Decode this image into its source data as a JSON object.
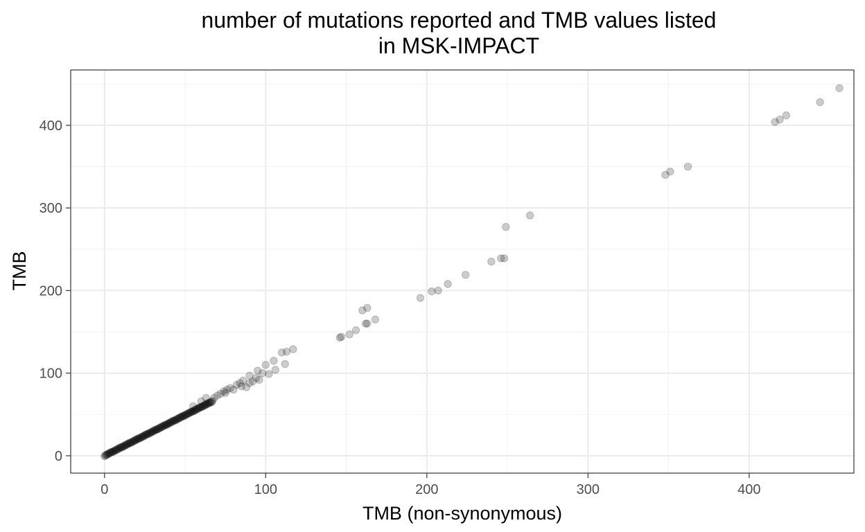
{
  "chart_data": {
    "type": "scatter",
    "title_lines": [
      "number of mutations reported and TMB values listed",
      "in MSK-IMPACT"
    ],
    "xlabel": "TMB (non-synonymous)",
    "ylabel": "TMB",
    "xlim": [
      -21,
      465
    ],
    "ylim": [
      -21,
      467
    ],
    "x_ticks": [
      0,
      100,
      200,
      300,
      400
    ],
    "y_ticks": [
      0,
      100,
      200,
      300,
      400
    ],
    "x_tick_labels": [
      "0",
      "100",
      "200",
      "300",
      "400"
    ],
    "y_tick_labels": [
      "0",
      "100",
      "200",
      "300",
      "400"
    ],
    "grid": true,
    "colors": {
      "point_fill": "#000000",
      "point_opacity": 0.2,
      "grid_major": "#ebebeb",
      "grid_minor": "#f2f2f2",
      "panel_border": "#333333",
      "tick_label": "#4d4d4d"
    },
    "dense_cluster": {
      "x_range": [
        0,
        67
      ],
      "slope": 0.985,
      "step": 0.5,
      "description_only": false
    },
    "x": [
      70,
      72,
      74,
      76,
      78,
      82,
      84,
      86,
      88,
      90,
      92,
      95,
      96,
      98,
      100,
      102,
      105,
      106,
      110,
      112,
      113,
      117,
      146,
      147,
      152,
      156,
      160,
      162,
      163,
      163,
      168,
      196,
      203,
      207,
      213,
      224,
      240,
      246,
      248,
      249,
      264,
      348,
      351,
      362,
      416,
      419,
      423,
      444,
      456,
      55,
      60,
      63,
      68,
      75,
      80,
      85,
      90,
      94
    ],
    "y": [
      73,
      75,
      78,
      80,
      82,
      86,
      88,
      91,
      83,
      97,
      90,
      103,
      92,
      100,
      110,
      99,
      115,
      104,
      125,
      111,
      126,
      129,
      143,
      144,
      147,
      152,
      176,
      160,
      179,
      160,
      165,
      191,
      199,
      200,
      208,
      219,
      235,
      239,
      239,
      277,
      291,
      340,
      344,
      350,
      404,
      407,
      412,
      428,
      445,
      60,
      66,
      70,
      70,
      76,
      80,
      84,
      88,
      94
    ]
  }
}
